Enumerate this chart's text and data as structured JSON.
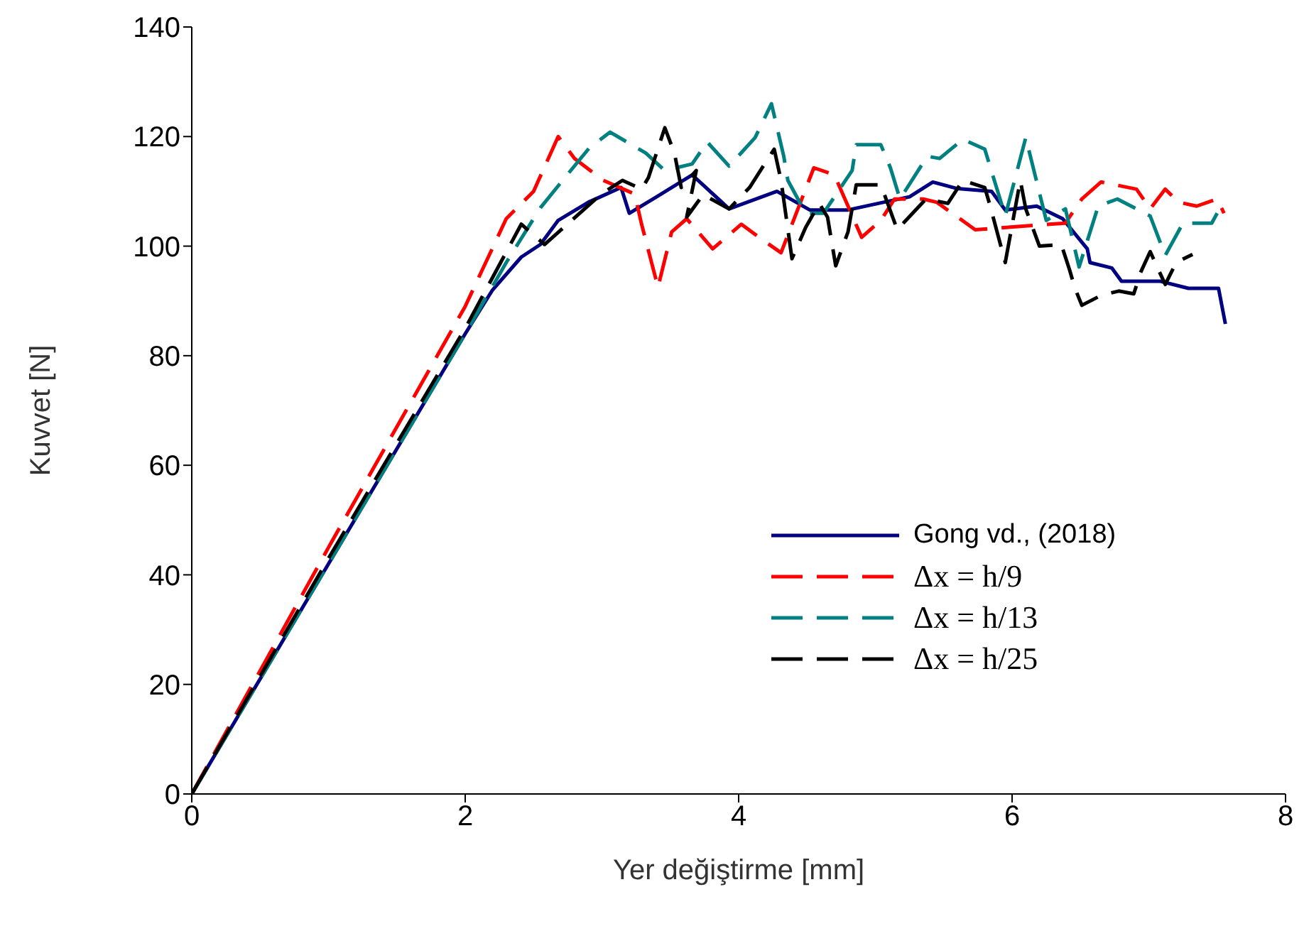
{
  "chart_data": {
    "type": "line",
    "xlabel": "Yer değiştirme [mm]",
    "ylabel": "Kuvvet [N]",
    "xlim": [
      0,
      8
    ],
    "xticks": [
      0,
      2,
      4,
      6,
      8
    ],
    "ylim": [
      0,
      140
    ],
    "yticks": [
      0,
      20,
      40,
      60,
      80,
      100,
      120,
      140
    ],
    "grid": false,
    "legend": "bottom right",
    "series": [
      {
        "name": "Gong vd., (2018)",
        "color": "#000080",
        "line_style": "solid",
        "x": [
          0,
          1,
          1.5,
          2,
          2.2,
          2.41,
          2.55,
          2.68,
          2.9,
          3.14,
          3.2,
          3.4,
          3.66,
          3.93,
          4.28,
          4.52,
          4.8,
          5.04,
          5.25,
          5.42,
          5.6,
          5.85,
          5.95,
          6.18,
          6.37,
          6.55,
          6.57,
          6.73,
          6.8,
          7.08,
          7.29,
          7.51,
          7.56
        ],
        "values": [
          0,
          42,
          63,
          84,
          92,
          98,
          100.3,
          104.7,
          108,
          110.7,
          106,
          109,
          113,
          106.8,
          110,
          106.6,
          106.6,
          107.9,
          109,
          111.7,
          110.5,
          110,
          106.6,
          107.3,
          105,
          99.5,
          97,
          96,
          93.6,
          93.6,
          92.3,
          92.3,
          85.8
        ]
      },
      {
        "name": "Δx = h/9",
        "color": "#ff0000",
        "line_style": "dashed",
        "x": [
          0,
          1,
          2,
          2.3,
          2.5,
          2.68,
          2.8,
          3.01,
          3.24,
          3.29,
          3.41,
          3.51,
          3.62,
          3.81,
          4.02,
          4.16,
          4.31,
          4.55,
          4.7,
          4.9,
          5.04,
          5.14,
          5.35,
          5.45,
          5.73,
          6.11,
          6.39,
          6.51,
          6.65,
          6.91,
          7.01,
          7.12,
          7.22,
          7.35,
          7.5,
          7.55
        ],
        "values": [
          0,
          45,
          89,
          105,
          110,
          120,
          116,
          112,
          109.5,
          104,
          92.5,
          102.6,
          105,
          99.5,
          104,
          101.4,
          98.8,
          114.3,
          113,
          101.6,
          104.7,
          108.6,
          108.6,
          108,
          103,
          103.7,
          104.2,
          108.6,
          111.7,
          110.4,
          106.8,
          110.4,
          108,
          107.3,
          108.6,
          106
        ]
      },
      {
        "name": "Δx = h/13",
        "color": "#008080",
        "line_style": "dashed",
        "x": [
          0,
          1,
          2,
          2.3,
          2.55,
          2.68,
          2.91,
          3.06,
          3.32,
          3.46,
          3.66,
          3.77,
          3.93,
          4.12,
          4.24,
          4.33,
          4.36,
          4.49,
          4.62,
          4.83,
          4.86,
          5.04,
          5.11,
          5.18,
          5.38,
          5.47,
          5.64,
          5.8,
          5.95,
          6.1,
          6.25,
          6.39,
          6.49,
          6.63,
          6.77,
          7.01,
          7.12,
          7.25,
          7.46,
          7.5
        ],
        "values": [
          0,
          42,
          84,
          97,
          107,
          111,
          118,
          120.8,
          117,
          113.8,
          115,
          119,
          114.6,
          119.8,
          126,
          116.4,
          112,
          106,
          106,
          113.8,
          118.5,
          118.5,
          114.3,
          108.6,
          116.4,
          116,
          119.5,
          117.7,
          105.5,
          119.8,
          104.7,
          106.8,
          96.2,
          107.3,
          108.6,
          105.5,
          98.3,
          104.2,
          104.2,
          106
        ]
      },
      {
        "name": "Δx = h/25",
        "color": "#000000",
        "line_style": "dashed",
        "x": [
          0,
          1,
          2,
          2.41,
          2.58,
          2.72,
          2.99,
          3.15,
          3.29,
          3.34,
          3.46,
          3.53,
          3.58,
          3.69,
          3.62,
          3.74,
          3.93,
          4.08,
          4.18,
          4.26,
          4.31,
          4.39,
          4.49,
          4.59,
          4.65,
          4.71,
          4.8,
          4.86,
          5.04,
          5.16,
          5.37,
          5.53,
          5.64,
          5.8,
          5.84,
          5.95,
          6.06,
          6.1,
          6.2,
          6.36,
          6.42,
          6.46,
          6.51,
          6.65,
          6.78,
          6.89,
          6.94,
          7.01,
          7.12,
          7.2,
          7.32
        ],
        "values": [
          0,
          43,
          85,
          104,
          100.3,
          103.4,
          109.4,
          112,
          110.4,
          112.5,
          121.6,
          117,
          110.7,
          113.8,
          105.3,
          109.4,
          106.8,
          110.7,
          114.6,
          117.7,
          112,
          97.7,
          103.4,
          107.8,
          105.3,
          96.4,
          102.6,
          111.2,
          111.2,
          103,
          108.6,
          107.8,
          112,
          110.7,
          107.3,
          97,
          112,
          106.8,
          100,
          100.3,
          95.7,
          92.3,
          89.2,
          91,
          91.8,
          91.3,
          95.2,
          99,
          93,
          97,
          98.5
        ]
      }
    ]
  }
}
